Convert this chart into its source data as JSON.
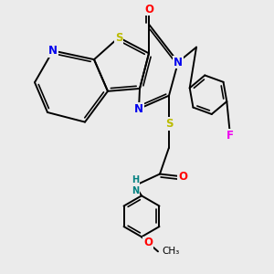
{
  "bg_color": "#ebebeb",
  "bond_color": "#000000",
  "bond_width": 1.4,
  "atom_colors": {
    "N": "#0000ee",
    "O": "#ff0000",
    "S": "#bbbb00",
    "F": "#ee00ee",
    "HN": "#008080",
    "C": "#000000"
  },
  "fig_width": 3.0,
  "fig_height": 3.0,
  "dpi": 100,
  "xlim": [
    0,
    10
  ],
  "ylim": [
    0,
    10
  ]
}
